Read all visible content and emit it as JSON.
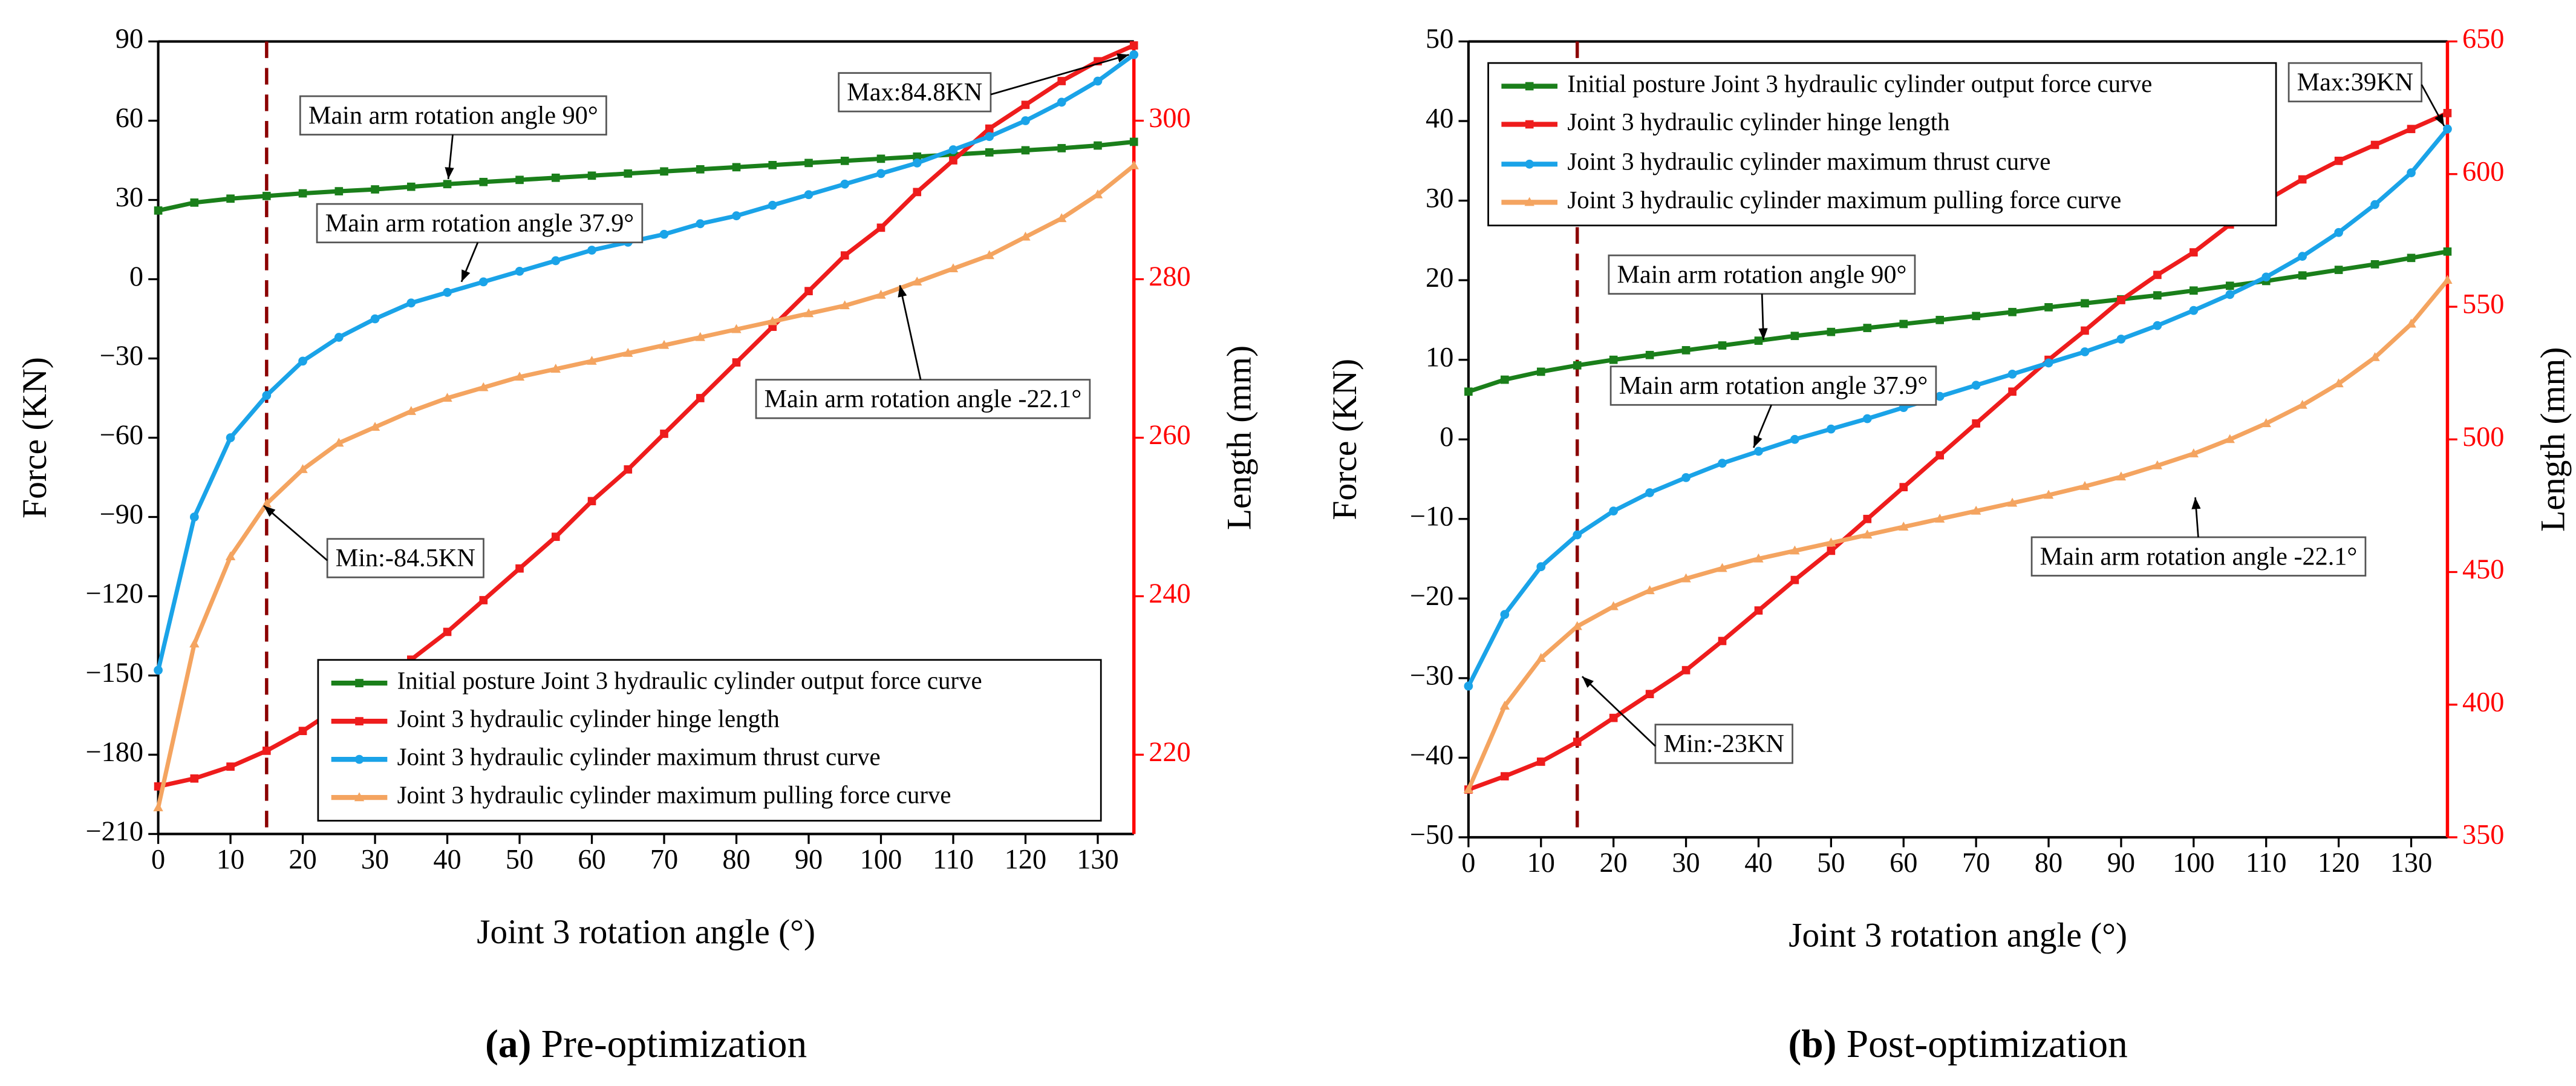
{
  "chart_data": [
    {
      "type": "line",
      "caption": "(a)",
      "subtitle": "Pre-optimization",
      "x_label": "Joint 3 rotation angle (°)",
      "y_label": "Force (KN)",
      "y2_label": "Length (mm)",
      "x": [
        0,
        5,
        10,
        15,
        20,
        25,
        30,
        35,
        40,
        45,
        50,
        55,
        60,
        65,
        70,
        75,
        80,
        85,
        90,
        95,
        100,
        105,
        110,
        115,
        120,
        125,
        130,
        135
      ],
      "xlim": [
        0,
        135
      ],
      "xticks": [
        0,
        10,
        20,
        30,
        40,
        50,
        60,
        70,
        80,
        90,
        100,
        110,
        120,
        130
      ],
      "ylim": [
        -210,
        90
      ],
      "yticks": [
        {
          "value": -210,
          "label": "−210"
        },
        {
          "value": -180,
          "label": "−180"
        },
        {
          "value": -150,
          "label": "−150"
        },
        {
          "value": -120,
          "label": "−120"
        },
        {
          "value": -90,
          "label": "−90"
        },
        {
          "value": -60,
          "label": "−60"
        },
        {
          "value": -30,
          "label": "−30"
        },
        0,
        30,
        60,
        90
      ],
      "y2lim": [
        210,
        310
      ],
      "y2ticks": [
        220,
        240,
        260,
        280,
        300
      ],
      "y2_color": "#ff0000",
      "vline": 15,
      "legend": "lower right",
      "series": [
        {
          "name": "Initial posture Joint 3 hydraulic cylinder output force curve",
          "color": "#1a7f1a",
          "marker": "square",
          "values": [
            26,
            29,
            30.5,
            31.5,
            32.5,
            33.3,
            34,
            35,
            36,
            36.8,
            37.6,
            38.4,
            39.2,
            40,
            40.8,
            41.6,
            42.4,
            43.2,
            44,
            44.8,
            45.6,
            46.4,
            47.2,
            48,
            48.8,
            49.6,
            50.6,
            52
          ]
        },
        {
          "name": "Joint 3 hydraulic cylinder hinge length",
          "color": "#ee1c1c",
          "marker": "square",
          "axis": "y2",
          "values": [
            216,
            217,
            218.5,
            220.5,
            223,
            226,
            229,
            232,
            235.5,
            239.5,
            243.5,
            247.5,
            252,
            256,
            260.5,
            265,
            269.5,
            274,
            278.5,
            283,
            286.5,
            291,
            295,
            299,
            302,
            305,
            307.5,
            309.5
          ]
        },
        {
          "name": "Joint 3 hydraulic cylinder maximum thrust curve",
          "color": "#1aa3e8",
          "marker": "circle",
          "values": [
            -148,
            -90,
            -60,
            -44,
            -31,
            -22,
            -15,
            -9,
            -5,
            -1,
            3,
            7,
            11,
            14,
            17,
            21,
            24,
            28,
            32,
            36,
            40,
            44,
            49,
            54,
            60,
            67,
            75,
            85
          ]
        },
        {
          "name": "Joint 3 hydraulic cylinder maximum pulling force curve",
          "color": "#f4a460",
          "marker": "triangle",
          "values": [
            -200,
            -138,
            -105,
            -85,
            -72,
            -62,
            -56,
            -50,
            -45,
            -41,
            -37,
            -34,
            -31,
            -28,
            -25,
            -22,
            -19,
            -16,
            -13,
            -10,
            -6,
            -1,
            4,
            9,
            16,
            23,
            32,
            43
          ]
        }
      ],
      "annotations": [
        {
          "text": "Max:84.8KN"
        },
        {
          "text": "Main arm rotation angle 90°"
        },
        {
          "text": "Main arm rotation angle 37.9°"
        },
        {
          "text": "Main arm rotation angle -22.1°"
        },
        {
          "text": "Min:-84.5KN"
        }
      ]
    },
    {
      "type": "line",
      "caption": "(b)",
      "subtitle": "Post-optimization",
      "x_label": "Joint 3 rotation angle (°)",
      "y_label": "Force (KN)",
      "y2_label": "Length (mm)",
      "x": [
        0,
        5,
        10,
        15,
        20,
        25,
        30,
        35,
        40,
        45,
        50,
        55,
        60,
        65,
        70,
        75,
        80,
        85,
        90,
        95,
        100,
        105,
        110,
        115,
        120,
        125,
        130,
        135
      ],
      "xlim": [
        0,
        135
      ],
      "xticks": [
        0,
        10,
        20,
        30,
        40,
        50,
        60,
        70,
        80,
        90,
        100,
        110,
        120,
        130
      ],
      "ylim": [
        -50,
        50
      ],
      "yticks": [
        {
          "value": -50,
          "label": "−50"
        },
        {
          "value": -40,
          "label": "−40"
        },
        {
          "value": -30,
          "label": "−30"
        },
        {
          "value": -20,
          "label": "−20"
        },
        {
          "value": -10,
          "label": "−10"
        },
        0,
        10,
        20,
        30,
        40,
        50
      ],
      "y2lim": [
        350,
        650
      ],
      "y2ticks": [
        350,
        400,
        450,
        500,
        550,
        600,
        650
      ],
      "y2_color": "#ff0000",
      "vline": 15,
      "legend": "upper left",
      "series": [
        {
          "name": "Initial posture Joint 3 hydraulic cylinder output force curve",
          "color": "#1a7f1a",
          "marker": "square",
          "values": [
            6,
            7.5,
            8.5,
            9.3,
            10,
            10.6,
            11.2,
            11.8,
            12.4,
            13,
            13.5,
            14,
            14.5,
            15,
            15.5,
            16,
            16.6,
            17.1,
            17.6,
            18.1,
            18.7,
            19.3,
            19.9,
            20.6,
            21.3,
            22,
            22.8,
            23.6
          ]
        },
        {
          "name": "Joint 3 hydraulic cylinder hinge length",
          "color": "#ee1c1c",
          "marker": "square",
          "axis": "y2",
          "values": [
            368,
            373,
            378.5,
            386,
            395,
            404,
            413,
            424,
            435.5,
            447,
            458,
            470,
            482,
            494,
            506,
            518,
            530,
            541,
            552.5,
            562,
            570.5,
            581,
            590,
            598,
            605,
            611,
            617,
            623
          ]
        },
        {
          "name": "Joint 3 hydraulic cylinder maximum thrust curve",
          "color": "#1aa3e8",
          "marker": "circle",
          "values": [
            -31,
            -22,
            -16,
            -12,
            -9,
            -6.7,
            -4.8,
            -3,
            -1.5,
            0,
            1.3,
            2.6,
            4,
            5.4,
            6.8,
            8.2,
            9.6,
            11,
            12.6,
            14.3,
            16.2,
            18.2,
            20.4,
            23,
            26,
            29.5,
            33.5,
            39
          ]
        },
        {
          "name": "Joint 3 hydraulic cylinder maximum pulling force curve",
          "color": "#f4a460",
          "marker": "triangle",
          "values": [
            -44,
            -33.5,
            -27.5,
            -23.5,
            -21,
            -19,
            -17.5,
            -16.2,
            -15,
            -14,
            -13,
            -12,
            -11,
            -10,
            -9,
            -8,
            -7,
            -5.9,
            -4.7,
            -3.3,
            -1.8,
            0,
            2,
            4.3,
            7,
            10.3,
            14.5,
            20
          ]
        }
      ],
      "annotations": [
        {
          "text": "Max:39KN"
        },
        {
          "text": "Main arm rotation angle 90°"
        },
        {
          "text": "Main arm rotation angle 37.9°"
        },
        {
          "text": "Main arm rotation angle -22.1°"
        },
        {
          "text": "Min:-23KN"
        }
      ]
    }
  ]
}
